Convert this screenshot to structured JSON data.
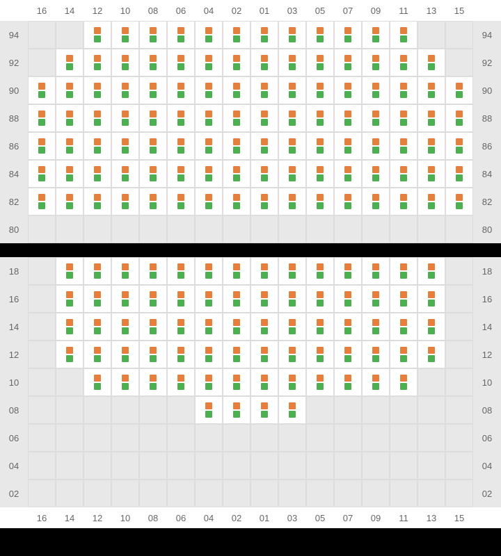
{
  "colors": {
    "orange": "#e67e3c",
    "green": "#4caf50",
    "empty_bg": "#e8e8e8",
    "filled_bg": "#ffffff",
    "grid_border": "#dddddd",
    "label_color": "#666666"
  },
  "columns": [
    "16",
    "14",
    "12",
    "10",
    "08",
    "06",
    "04",
    "02",
    "01",
    "03",
    "05",
    "07",
    "09",
    "11",
    "13",
    "15"
  ],
  "top": {
    "rows": [
      "94",
      "92",
      "90",
      "88",
      "86",
      "84",
      "82",
      "80"
    ],
    "cells": {
      "94": [
        0,
        0,
        1,
        1,
        1,
        1,
        1,
        1,
        1,
        1,
        1,
        1,
        1,
        1,
        0,
        0
      ],
      "92": [
        0,
        1,
        1,
        1,
        1,
        1,
        1,
        1,
        1,
        1,
        1,
        1,
        1,
        1,
        1,
        0
      ],
      "90": [
        1,
        1,
        1,
        1,
        1,
        1,
        1,
        1,
        1,
        1,
        1,
        1,
        1,
        1,
        1,
        1
      ],
      "88": [
        1,
        1,
        1,
        1,
        1,
        1,
        1,
        1,
        1,
        1,
        1,
        1,
        1,
        1,
        1,
        1
      ],
      "86": [
        1,
        1,
        1,
        1,
        1,
        1,
        1,
        1,
        1,
        1,
        1,
        1,
        1,
        1,
        1,
        1
      ],
      "84": [
        1,
        1,
        1,
        1,
        1,
        1,
        1,
        1,
        1,
        1,
        1,
        1,
        1,
        1,
        1,
        1
      ],
      "82": [
        1,
        1,
        1,
        1,
        1,
        1,
        1,
        1,
        1,
        1,
        1,
        1,
        1,
        1,
        1,
        1
      ],
      "80": [
        0,
        0,
        0,
        0,
        0,
        0,
        0,
        0,
        0,
        0,
        0,
        0,
        0,
        0,
        0,
        0
      ]
    }
  },
  "bottom": {
    "rows": [
      "18",
      "16",
      "14",
      "12",
      "10",
      "08",
      "06",
      "04",
      "02"
    ],
    "cells": {
      "18": [
        0,
        1,
        1,
        1,
        1,
        1,
        1,
        1,
        1,
        1,
        1,
        1,
        1,
        1,
        1,
        0
      ],
      "16": [
        0,
        1,
        1,
        1,
        1,
        1,
        1,
        1,
        1,
        1,
        1,
        1,
        1,
        1,
        1,
        0
      ],
      "14": [
        0,
        1,
        1,
        1,
        1,
        1,
        1,
        1,
        1,
        1,
        1,
        1,
        1,
        1,
        1,
        0
      ],
      "12": [
        0,
        1,
        1,
        1,
        1,
        1,
        1,
        1,
        1,
        1,
        1,
        1,
        1,
        1,
        1,
        0
      ],
      "10": [
        0,
        0,
        1,
        1,
        1,
        1,
        1,
        1,
        1,
        1,
        1,
        1,
        1,
        1,
        0,
        0
      ],
      "08": [
        0,
        0,
        0,
        0,
        0,
        0,
        1,
        1,
        1,
        1,
        0,
        0,
        0,
        0,
        0,
        0
      ],
      "06": [
        0,
        0,
        0,
        0,
        0,
        0,
        0,
        0,
        0,
        0,
        0,
        0,
        0,
        0,
        0,
        0
      ],
      "04": [
        0,
        0,
        0,
        0,
        0,
        0,
        0,
        0,
        0,
        0,
        0,
        0,
        0,
        0,
        0,
        0
      ],
      "02": [
        0,
        0,
        0,
        0,
        0,
        0,
        0,
        0,
        0,
        0,
        0,
        0,
        0,
        0,
        0,
        0
      ]
    }
  }
}
